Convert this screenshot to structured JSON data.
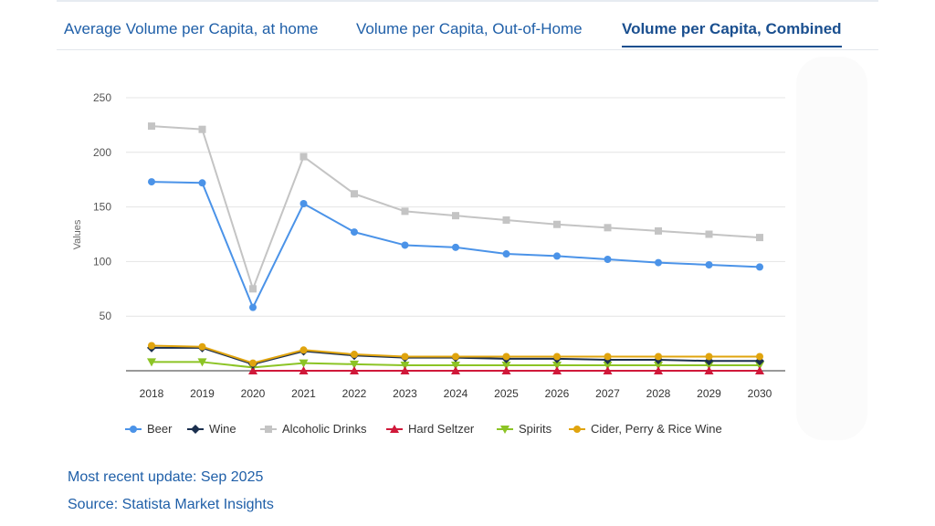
{
  "tabs": [
    {
      "label": "Average Volume per Capita, at home",
      "active": false
    },
    {
      "label": "Volume per Capita, Out-of-Home",
      "active": false
    },
    {
      "label": "Volume per Capita, Combined",
      "active": true
    }
  ],
  "chart_data": {
    "type": "line",
    "ylabel": "Values",
    "xlabel": "",
    "ylim": [
      0,
      250
    ],
    "yticks": [
      50,
      100,
      150,
      200,
      250
    ],
    "grid": true,
    "legend_position": "bottom",
    "x": [
      "2018",
      "2019",
      "2020",
      "2021",
      "2022",
      "2023",
      "2024",
      "2025",
      "2026",
      "2027",
      "2028",
      "2029",
      "2030"
    ],
    "series": [
      {
        "name": "Beer",
        "color": "#4b93e8",
        "marker": "circle",
        "values": [
          173,
          172,
          58,
          153,
          127,
          115,
          113,
          107,
          105,
          102,
          99,
          97,
          95
        ]
      },
      {
        "name": "Wine",
        "color": "#1b2f4e",
        "marker": "diamond",
        "values": [
          21,
          21,
          6,
          18,
          14,
          12,
          12,
          11,
          11,
          10,
          10,
          9,
          9
        ]
      },
      {
        "name": "Alcoholic Drinks",
        "color": "#c4c4c4",
        "marker": "square",
        "values": [
          224,
          221,
          75,
          196,
          162,
          146,
          142,
          138,
          134,
          131,
          128,
          125,
          122
        ]
      },
      {
        "name": "Hard Seltzer",
        "color": "#d0193a",
        "marker": "triangle-up",
        "values": [
          null,
          null,
          0,
          0,
          0,
          0,
          0,
          0,
          0,
          0,
          0,
          0,
          0
        ]
      },
      {
        "name": "Spirits",
        "color": "#8cc425",
        "marker": "triangle-down",
        "values": [
          8,
          8,
          3,
          7,
          6,
          5,
          5,
          5,
          5,
          5,
          5,
          5,
          5
        ]
      },
      {
        "name": "Cider, Perry & Rice Wine",
        "color": "#e0a40e",
        "marker": "circle",
        "values": [
          23,
          22,
          7,
          19,
          15,
          13,
          13,
          13,
          13,
          13,
          13,
          13,
          13
        ]
      }
    ]
  },
  "footer": {
    "update": "Most recent update: Sep 2025",
    "source": "Source: Statista Market Insights"
  }
}
